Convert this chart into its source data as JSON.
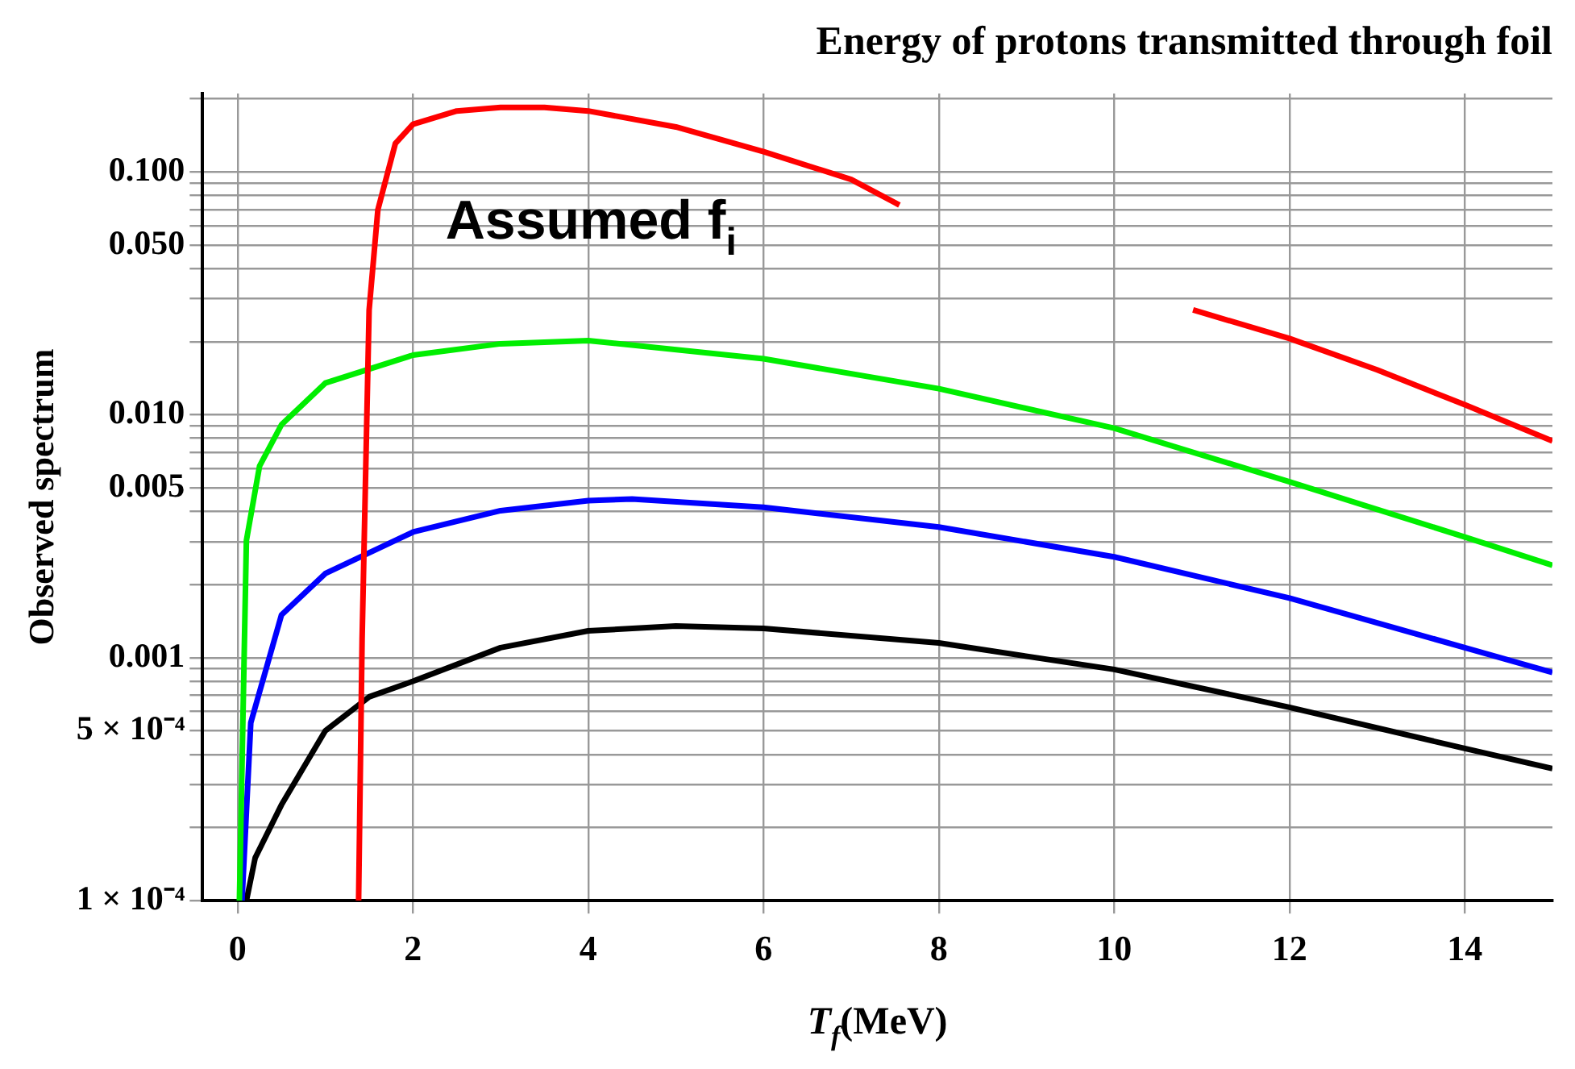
{
  "chart_data": {
    "type": "line",
    "title": "Energy of protons transmitted through foil",
    "xlabel": "T$_{f}$(MeV)",
    "ylabel": "Observed spectrum",
    "annotations": [
      "Assumed f$_{i}$"
    ],
    "log": "y",
    "grid": true,
    "legend": false,
    "marker": "none",
    "line_style": "solid",
    "xlim": [
      -0.4,
      15
    ],
    "xticks": [
      0,
      2,
      4,
      6,
      8,
      10,
      12,
      14
    ],
    "ylim": [
      0.0001,
      0.21
    ],
    "yticks": [
      {
        "value": 0.0001,
        "label": "1 × 10⁻⁴"
      },
      {
        "value": 0.0002,
        "label": null
      },
      {
        "value": 0.0003,
        "label": null
      },
      {
        "value": 0.0004,
        "label": null
      },
      {
        "value": 0.0005,
        "label": "5 × 10⁻⁴"
      },
      {
        "value": 0.0006,
        "label": null
      },
      {
        "value": 0.0007,
        "label": null
      },
      {
        "value": 0.0008,
        "label": null
      },
      {
        "value": 0.0009,
        "label": null
      },
      {
        "value": 0.001,
        "label": "0.001"
      },
      {
        "value": 0.002,
        "label": null
      },
      {
        "value": 0.003,
        "label": null
      },
      {
        "value": 0.004,
        "label": null
      },
      {
        "value": 0.005,
        "label": "0.005"
      },
      {
        "value": 0.006,
        "label": null
      },
      {
        "value": 0.007,
        "label": null
      },
      {
        "value": 0.008,
        "label": null
      },
      {
        "value": 0.009,
        "label": null
      },
      {
        "value": 0.01,
        "label": "0.010"
      },
      {
        "value": 0.02,
        "label": null
      },
      {
        "value": 0.03,
        "label": null
      },
      {
        "value": 0.04,
        "label": null
      },
      {
        "value": 0.05,
        "label": "0.050"
      },
      {
        "value": 0.06,
        "label": null
      },
      {
        "value": 0.07,
        "label": null
      },
      {
        "value": 0.08,
        "label": null
      },
      {
        "value": 0.09,
        "label": null
      },
      {
        "value": 0.1,
        "label": "0.100"
      },
      {
        "value": 0.2,
        "label": null
      }
    ],
    "series": [
      {
        "color": "#ff0000",
        "x": [
          1.38,
          1.42,
          1.5,
          1.6,
          1.8,
          2,
          2.5,
          3,
          3.5,
          4,
          5,
          6,
          7,
          7.55,
          9,
          10.9,
          12,
          13,
          14,
          15
        ],
        "values": [
          0.0001,
          0.00119,
          0.027,
          0.0698,
          0.131,
          0.157,
          0.178,
          0.184,
          0.184,
          0.178,
          0.153,
          0.121,
          0.093,
          0.073,
          null,
          0.027,
          0.0206,
          0.0153,
          0.011,
          0.0078
        ]
      },
      {
        "color": "#00ee00",
        "x": [
          0.02,
          0.1,
          0.25,
          0.5,
          1,
          2,
          3,
          4,
          6,
          8,
          10,
          12,
          14,
          15
        ],
        "values": [
          0.0001,
          0.00304,
          0.00615,
          0.0091,
          0.0135,
          0.0176,
          0.0196,
          0.0202,
          0.017,
          0.0128,
          0.0088,
          0.0053,
          0.00314,
          0.0024
        ]
      },
      {
        "color": "#0000ff",
        "x": [
          0.05,
          0.15,
          0.5,
          1,
          2,
          3,
          4,
          4.5,
          6,
          8,
          10,
          12,
          14,
          15
        ],
        "values": [
          0.0001,
          0.00054,
          0.0015,
          0.00222,
          0.00329,
          0.00403,
          0.00443,
          0.0045,
          0.00416,
          0.00345,
          0.0026,
          0.00176,
          0.0011,
          0.00087
        ]
      },
      {
        "color": "#000000",
        "x": [
          0.1,
          0.2,
          0.5,
          1,
          1.5,
          2,
          3,
          4,
          5,
          6,
          8,
          10,
          12,
          14,
          15
        ],
        "values": [
          0.0001,
          0.00015,
          0.000248,
          0.0005,
          0.00069,
          0.0008,
          0.0011,
          0.00129,
          0.00135,
          0.00132,
          0.00115,
          0.000895,
          0.000625,
          0.000423,
          0.00035
        ]
      }
    ]
  }
}
